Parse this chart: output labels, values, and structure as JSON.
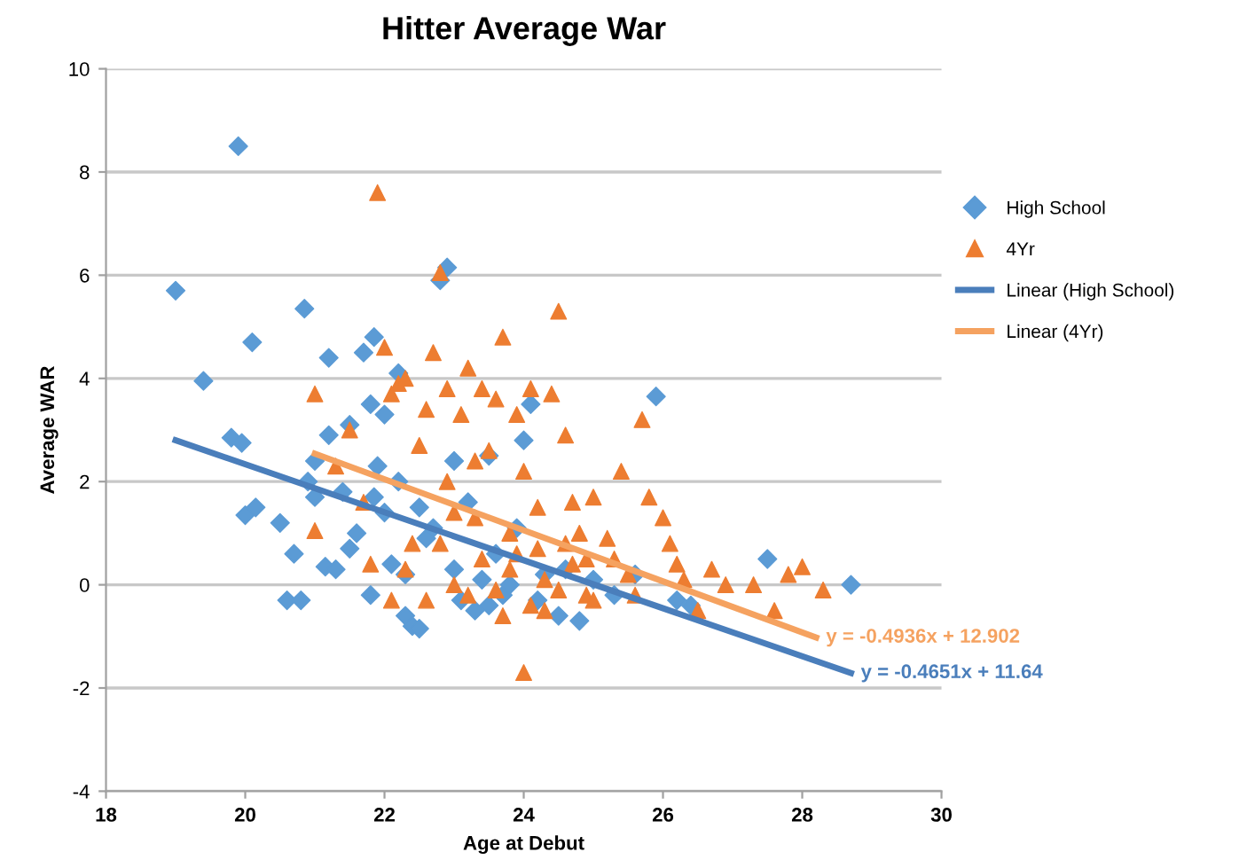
{
  "chart_data": {
    "type": "scatter",
    "title": "Hitter Average War",
    "xlabel": "Age at Debut",
    "ylabel": "Average WAR",
    "xlim": [
      18,
      30
    ],
    "xticks": [
      18,
      20,
      22,
      24,
      26,
      28,
      30
    ],
    "ylim": [
      -4,
      10
    ],
    "yticks": [
      -4,
      -2,
      0,
      2,
      4,
      6,
      8,
      10
    ],
    "grid": "y",
    "legend": "right",
    "series": [
      {
        "name": "High School",
        "color": "#5b9bd5",
        "marker": "diamond",
        "x": [
          19.0,
          19.4,
          19.9,
          20.1,
          19.8,
          19.95,
          20.0,
          20.15,
          20.5,
          20.6,
          20.7,
          20.85,
          20.8,
          20.9,
          21.0,
          21.0,
          21.2,
          21.2,
          21.15,
          21.3,
          21.4,
          21.5,
          21.5,
          21.6,
          21.7,
          21.8,
          21.85,
          21.85,
          21.8,
          21.9,
          22.0,
          22.0,
          22.1,
          22.2,
          22.2,
          22.3,
          22.3,
          22.4,
          22.5,
          22.5,
          22.6,
          22.7,
          22.8,
          22.9,
          23.0,
          23.0,
          23.1,
          23.2,
          23.3,
          23.4,
          23.5,
          23.5,
          23.6,
          23.7,
          23.8,
          23.9,
          24.0,
          24.1,
          24.2,
          24.3,
          24.5,
          24.6,
          24.8,
          25.0,
          25.3,
          25.6,
          25.9,
          26.2,
          26.4,
          27.5,
          28.7
        ],
        "values": [
          5.7,
          3.95,
          8.5,
          4.7,
          2.85,
          2.75,
          1.35,
          1.5,
          1.2,
          -0.3,
          0.6,
          5.35,
          -0.3,
          2.0,
          2.4,
          1.7,
          4.4,
          2.9,
          0.35,
          0.3,
          1.8,
          3.1,
          0.7,
          1.0,
          4.5,
          3.5,
          4.8,
          1.7,
          -0.2,
          2.3,
          3.3,
          1.4,
          0.4,
          4.1,
          2.0,
          0.2,
          -0.6,
          -0.8,
          -0.85,
          1.5,
          0.9,
          1.1,
          5.9,
          6.15,
          2.4,
          0.3,
          -0.3,
          1.6,
          -0.5,
          0.1,
          2.5,
          -0.4,
          0.6,
          -0.2,
          0.0,
          1.1,
          2.8,
          3.5,
          -0.3,
          0.2,
          -0.6,
          0.3,
          -0.7,
          0.1,
          -0.2,
          0.2,
          3.65,
          -0.3,
          -0.4,
          0.5,
          0.0
        ]
      },
      {
        "name": "4Yr",
        "color": "#ed7d31",
        "marker": "triangle",
        "x": [
          21.0,
          21.0,
          21.3,
          21.5,
          21.7,
          21.9,
          22.0,
          22.1,
          22.2,
          22.3,
          22.4,
          22.5,
          22.6,
          22.7,
          22.8,
          22.9,
          23.0,
          23.1,
          23.2,
          23.3,
          23.4,
          23.5,
          23.6,
          23.7,
          23.8,
          23.9,
          24.0,
          24.1,
          24.2,
          24.3,
          24.4,
          24.5,
          24.6,
          24.7,
          24.9,
          25.0,
          25.2,
          25.4,
          25.5,
          25.7,
          25.8,
          26.0,
          26.1,
          26.3,
          26.5,
          26.7,
          26.9,
          27.3,
          27.6,
          27.8,
          28.0,
          28.3,
          24.0,
          22.3,
          22.6,
          23.0,
          23.2,
          23.4,
          23.6,
          23.8,
          24.1,
          24.3,
          24.5,
          24.7,
          24.9,
          23.7,
          22.8,
          23.3,
          24.6,
          25.0,
          25.3,
          24.2,
          23.9,
          22.9,
          24.8,
          25.6,
          26.2,
          21.8,
          22.1
        ],
        "values": [
          3.7,
          1.05,
          2.3,
          3.0,
          1.6,
          7.6,
          4.6,
          3.7,
          3.9,
          4.0,
          0.8,
          2.7,
          3.4,
          4.5,
          6.05,
          3.8,
          1.4,
          3.3,
          4.2,
          2.4,
          3.8,
          2.6,
          3.6,
          4.8,
          1.0,
          3.3,
          2.2,
          3.8,
          1.5,
          -0.5,
          3.7,
          5.3,
          2.9,
          1.6,
          0.5,
          1.7,
          0.9,
          2.2,
          0.2,
          3.2,
          1.7,
          1.3,
          0.8,
          0.1,
          -0.5,
          0.3,
          0.0,
          0.0,
          -0.5,
          0.2,
          0.35,
          -0.1,
          -1.7,
          0.3,
          -0.3,
          0.0,
          -0.2,
          0.5,
          -0.1,
          0.3,
          -0.4,
          0.1,
          -0.1,
          0.4,
          -0.2,
          -0.6,
          0.8,
          1.3,
          0.8,
          -0.3,
          0.5,
          0.7,
          0.6,
          2.0,
          1.0,
          -0.2,
          0.4,
          0.4,
          -0.3
        ]
      },
      {
        "name": "Linear (High School)",
        "type": "line",
        "color": "#4a7ebb",
        "marker": "none",
        "x": [
          19.0,
          28.7
        ],
        "values": [
          2.8,
          -1.71
        ]
      },
      {
        "name": "Linear (4Yr)",
        "type": "line",
        "color": "#f5a260",
        "marker": "none",
        "x": [
          21.0,
          28.2
        ],
        "values": [
          2.54,
          -1.02
        ]
      }
    ],
    "annotations": [
      {
        "text": "y = -0.4936x + 12.902",
        "x": 28.2,
        "y": -1.02
      },
      {
        "text": "y = -0.4651x + 11.64",
        "x": 28.7,
        "y": -1.71
      }
    ]
  }
}
